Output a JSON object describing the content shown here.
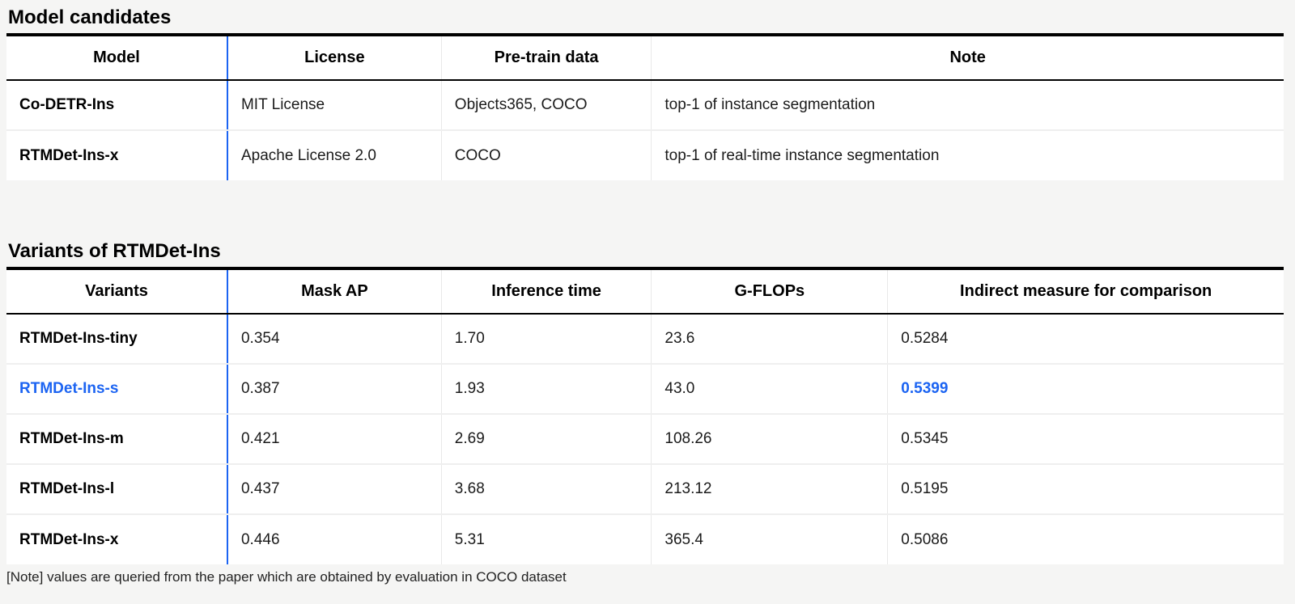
{
  "page": {
    "background_color": "#f5f5f4",
    "accent_color": "#1c64f2",
    "note": "[Note] values are queried from the paper which are obtained by evaluation in COCO dataset"
  },
  "tables": [
    {
      "title": "Model candidates",
      "columns": [
        "Model",
        "License",
        "Pre-train data",
        "Note"
      ],
      "rows": [
        {
          "cells": [
            "Co-DETR-Ins",
            "MIT License",
            "Objects365, COCO",
            "top-1 of instance segmentation"
          ]
        },
        {
          "cells": [
            "RTMDet-Ins-x",
            "Apache License 2.0",
            "COCO",
            "top-1 of real-time instance segmentation"
          ]
        }
      ]
    },
    {
      "title": "Variants of RTMDet-Ins",
      "columns": [
        "Variants",
        "Mask AP",
        "Inference time",
        "G-FLOPs",
        "Indirect measure for comparison"
      ],
      "rows": [
        {
          "cells": [
            "RTMDet-Ins-tiny",
            "0.354",
            "1.70",
            "23.6",
            "0.5284"
          ],
          "highlight": false
        },
        {
          "cells": [
            "RTMDet-Ins-s",
            "0.387",
            "1.93",
            "43.0",
            "0.5399"
          ],
          "highlight": true
        },
        {
          "cells": [
            "RTMDet-Ins-m",
            "0.421",
            "2.69",
            "108.26",
            "0.5345"
          ],
          "highlight": false
        },
        {
          "cells": [
            "RTMDet-Ins-l",
            "0.437",
            "3.68",
            "213.12",
            "0.5195"
          ],
          "highlight": false
        },
        {
          "cells": [
            "RTMDet-Ins-x",
            "0.446",
            "5.31",
            "365.4",
            "0.5086"
          ],
          "highlight": false
        }
      ]
    }
  ]
}
